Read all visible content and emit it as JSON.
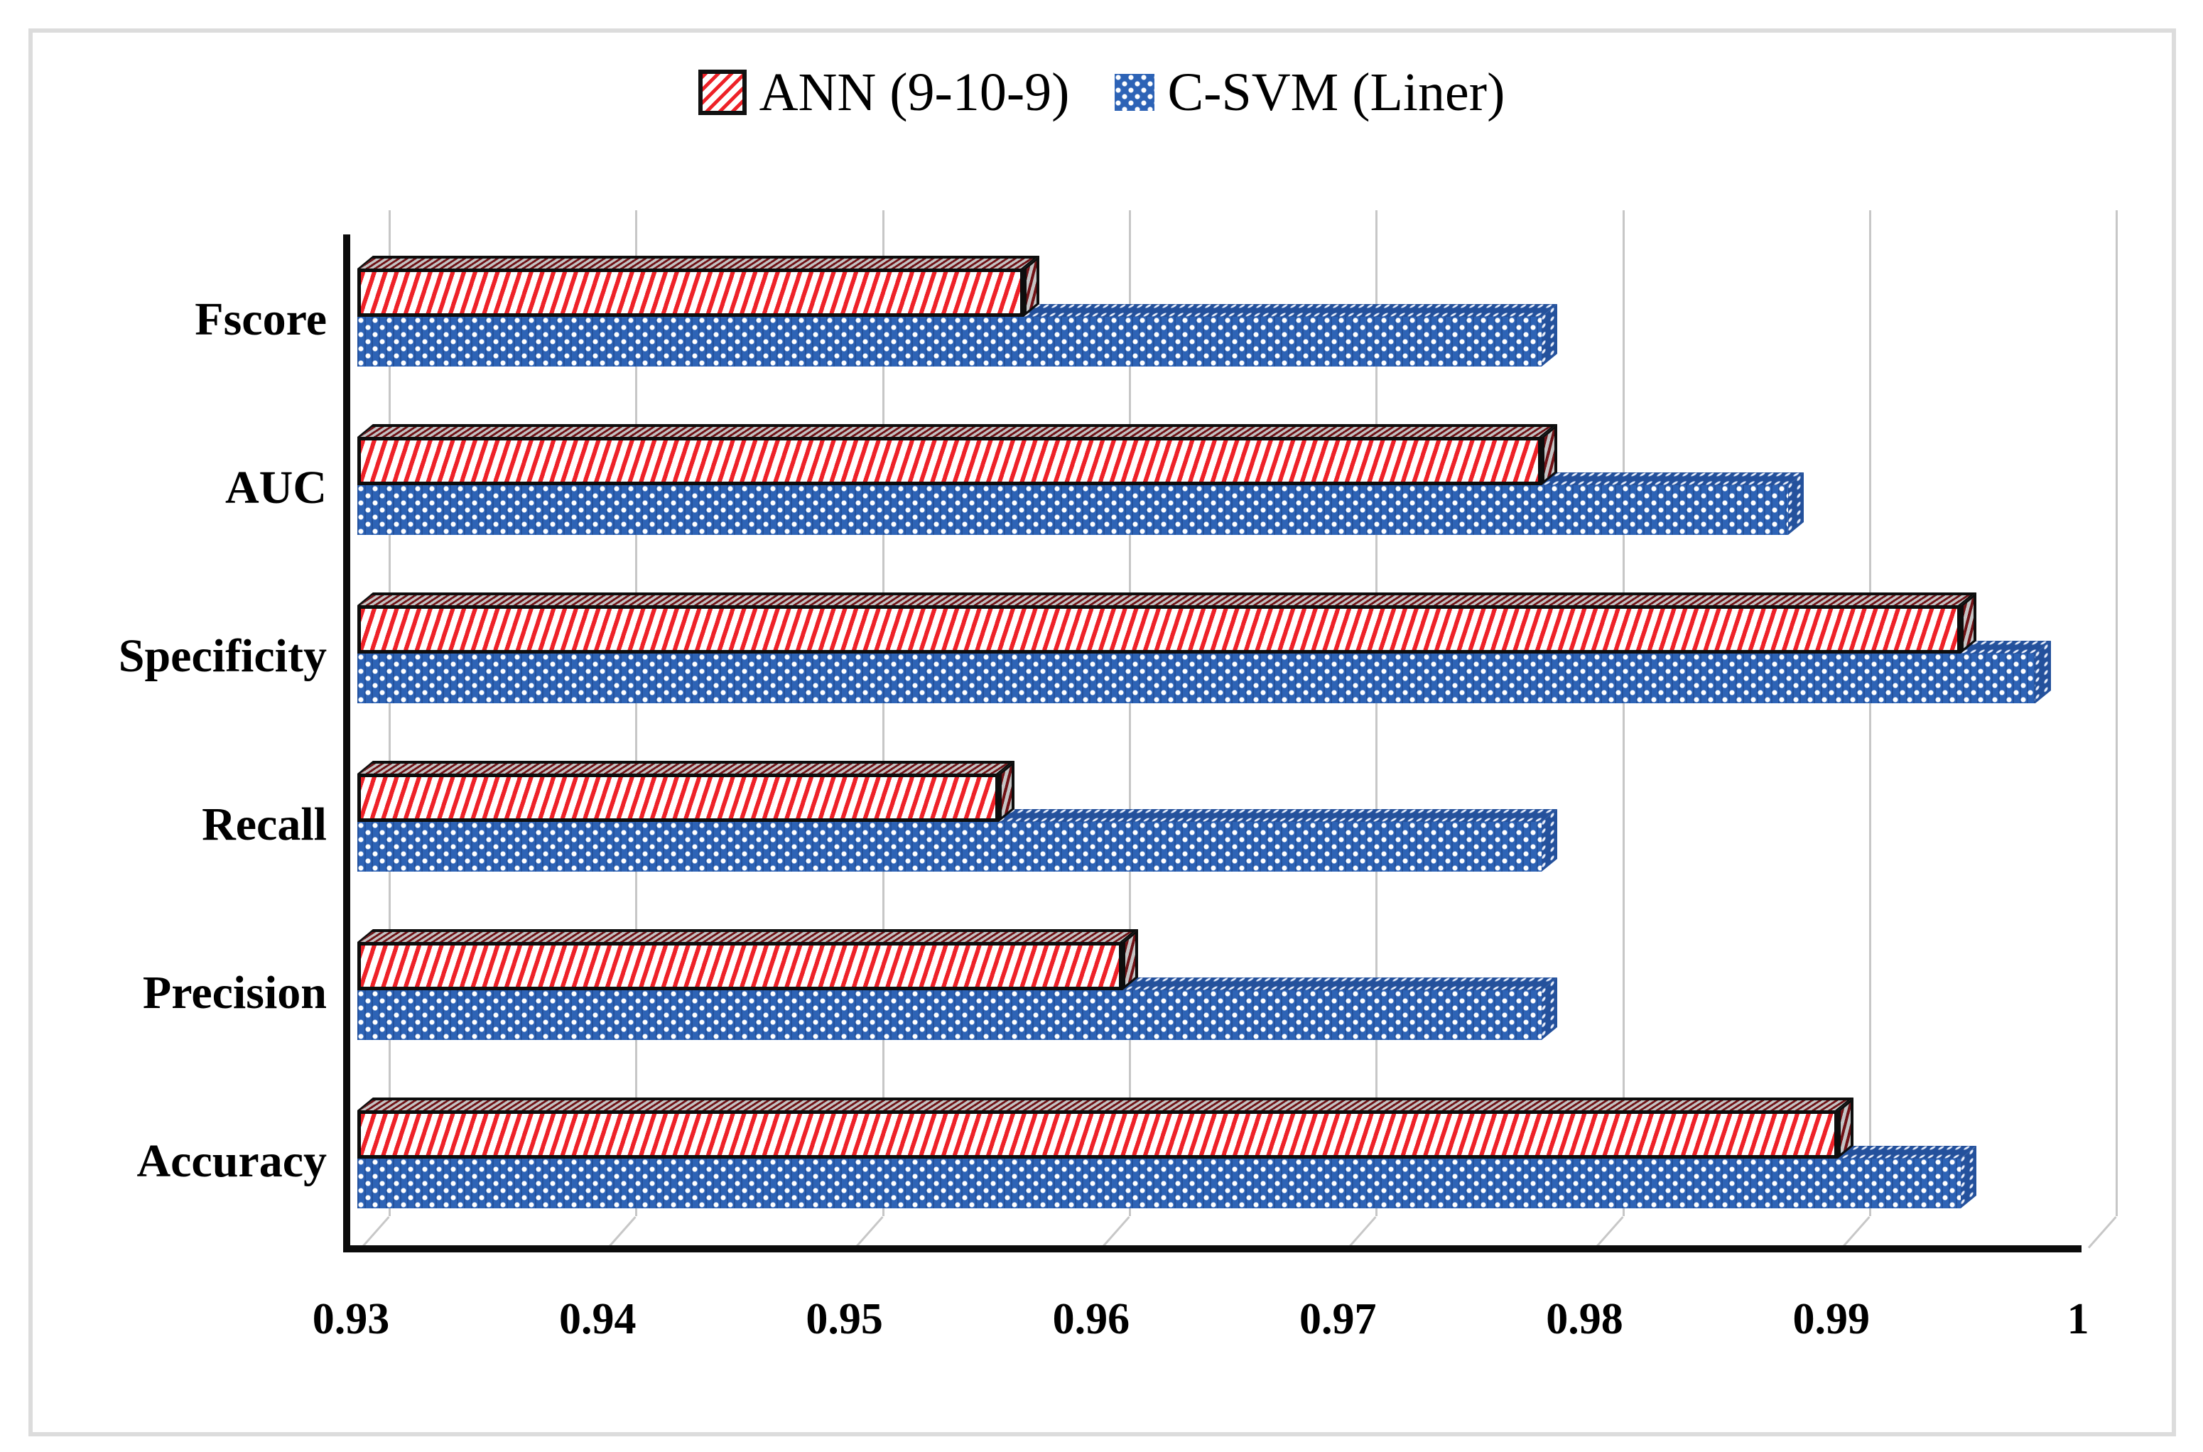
{
  "legend": {
    "items": [
      {
        "id": "ann",
        "label": "ANN (9-10-9)"
      },
      {
        "id": "csvm",
        "label": "C-SVM (Liner)"
      }
    ]
  },
  "chart_data": {
    "type": "bar",
    "orientation": "horizontal",
    "title": "",
    "xlabel": "",
    "ylabel": "",
    "categories": [
      "Fscore",
      "AUC",
      "Specificity",
      "Recall",
      "Precision",
      "Accuracy"
    ],
    "series": [
      {
        "name": "ANN (9-10-9)",
        "values": [
          0.957,
          0.978,
          0.995,
          0.956,
          0.961,
          0.99
        ]
      },
      {
        "name": "C-SVM (Liner)",
        "values": [
          0.978,
          0.988,
          0.998,
          0.978,
          0.978,
          0.995
        ]
      }
    ],
    "xlim": [
      0.93,
      1.0
    ],
    "xticks": [
      "0.93",
      "0.94",
      "0.95",
      "0.96",
      "0.97",
      "0.98",
      "0.99",
      "1"
    ],
    "xtick_values": [
      0.93,
      0.94,
      0.95,
      0.96,
      0.97,
      0.98,
      0.99,
      1.0
    ],
    "grid": true,
    "legend_position": "top",
    "style": "3d-clustered-bar",
    "colors": {
      "ann": "#ee2228",
      "csvm": "#2d63b6",
      "gridline": "#c7c7c7",
      "axis": "#0b0b0b"
    }
  }
}
